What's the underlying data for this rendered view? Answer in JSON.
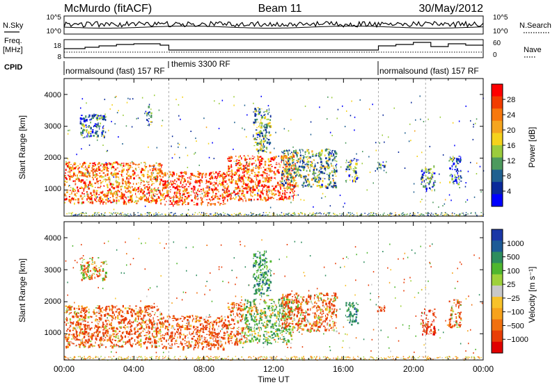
{
  "header": {
    "station": "McMurdo (fitACF)",
    "beam": "Beam 11",
    "date": "30/May/2012"
  },
  "noise_panel": {
    "left_label": "N.Sky",
    "right_label": "N.Search",
    "left_ticks": [
      "10^5",
      "10^0"
    ],
    "right_ticks": [
      "10^5",
      "10^0"
    ]
  },
  "freq_panel": {
    "left_label_line1": "Freq.",
    "left_label_line2": "[MHz]",
    "left_ticks": [
      "18",
      "8"
    ],
    "right_label": "Nave",
    "right_ticks": [
      "60",
      "0"
    ]
  },
  "cpid": {
    "label": "CPID",
    "segments": [
      {
        "text": "normalsound (fast) 157 RF",
        "start_hour": 0,
        "end_hour": 6
      },
      {
        "text": "themis 3300 RF",
        "start_hour": 6,
        "end_hour": 18
      },
      {
        "text": "normalsound (fast) 157 RF",
        "start_hour": 18,
        "end_hour": 24
      }
    ]
  },
  "chart_data": [
    {
      "type": "heatmap",
      "title": "",
      "xlabel": "",
      "ylabel": "Slant Range [km]",
      "xlim": [
        0,
        24
      ],
      "ylim": [
        180,
        4500
      ],
      "yticks": [
        1000,
        2000,
        3000,
        4000
      ],
      "colorbar": {
        "label": "Power [dB]",
        "ticks": [
          "28",
          "24",
          "20",
          "16",
          "12",
          "8",
          "4"
        ],
        "colors": [
          "#ff0000",
          "#f23c00",
          "#f7780d",
          "#f5a51f",
          "#f5d21c",
          "#9bcc3d",
          "#4d9a5e",
          "#206090",
          "#0a2a9a",
          "#0000ff"
        ]
      },
      "echo_regions": [
        {
          "t0": 0.0,
          "t1": 5.6,
          "r0": 600,
          "r1": 1900,
          "value_db": 24
        },
        {
          "t0": 5.6,
          "t1": 9.3,
          "r0": 550,
          "r1": 1600,
          "value_db": 28
        },
        {
          "t0": 9.3,
          "t1": 13.2,
          "r0": 700,
          "r1": 2100,
          "value_db": 26
        },
        {
          "t0": 10.8,
          "t1": 11.8,
          "r0": 2200,
          "r1": 3600,
          "value_db": 12
        },
        {
          "t0": 0.9,
          "t1": 2.4,
          "r0": 2700,
          "r1": 3400,
          "value_db": 8
        },
        {
          "t0": 4.7,
          "t1": 5.0,
          "r0": 3000,
          "r1": 3700,
          "value_db": 10
        },
        {
          "t0": 12.4,
          "t1": 15.6,
          "r0": 1100,
          "r1": 2300,
          "value_db": 12
        },
        {
          "t0": 16.1,
          "t1": 16.8,
          "r0": 1300,
          "r1": 2000,
          "value_db": 10
        },
        {
          "t0": 17.9,
          "t1": 18.4,
          "r0": 1700,
          "r1": 1900,
          "value_db": 8
        },
        {
          "t0": 20.4,
          "t1": 21.2,
          "r0": 1000,
          "r1": 1800,
          "value_db": 10
        },
        {
          "t0": 22.0,
          "t1": 22.7,
          "r0": 1200,
          "r1": 2100,
          "value_db": 8
        }
      ]
    },
    {
      "type": "heatmap",
      "title": "",
      "xlabel": "Time UT",
      "ylabel": "Slant Range [km]",
      "xlim": [
        0,
        24
      ],
      "ylim": [
        180,
        4500
      ],
      "yticks": [
        1000,
        2000,
        3000,
        4000
      ],
      "xticks": [
        "00:00",
        "04:00",
        "08:00",
        "12:00",
        "16:00",
        "20:00",
        "00:00"
      ],
      "colorbar": {
        "label": "Velocity [m s⁻¹]",
        "ticks": [
          "1000",
          "500",
          "100",
          "25",
          "−25",
          "−100",
          "−500",
          "−1000"
        ],
        "colors": [
          "#1a37a6",
          "#1d5b96",
          "#2e8d5e",
          "#4fb62f",
          "#9ed13a",
          "#c8c8c8",
          "#f7c22a",
          "#f7a21b",
          "#f0700f",
          "#e83d07",
          "#e00000"
        ]
      },
      "echo_regions": [
        {
          "t0": 0.0,
          "t1": 5.6,
          "r0": 600,
          "r1": 1900,
          "value_ms": -150
        },
        {
          "t0": 5.6,
          "t1": 9.3,
          "r0": 550,
          "r1": 1600,
          "value_ms": -200
        },
        {
          "t0": 9.3,
          "t1": 10.3,
          "r0": 700,
          "r1": 2000,
          "value_ms": -150
        },
        {
          "t0": 10.3,
          "t1": 13.0,
          "r0": 700,
          "r1": 2100,
          "value_ms": 150
        },
        {
          "t0": 10.8,
          "t1": 11.8,
          "r0": 2200,
          "r1": 3600,
          "value_ms": 300
        },
        {
          "t0": 0.9,
          "t1": 2.4,
          "r0": 2700,
          "r1": 3400,
          "value_ms": 0
        },
        {
          "t0": 12.4,
          "t1": 15.6,
          "r0": 1100,
          "r1": 2300,
          "value_ms": -120
        },
        {
          "t0": 16.1,
          "t1": 16.8,
          "r0": 1300,
          "r1": 2000,
          "value_ms": 400
        },
        {
          "t0": 17.9,
          "t1": 18.4,
          "r0": 1700,
          "r1": 1900,
          "value_ms": -200
        },
        {
          "t0": 20.4,
          "t1": 21.2,
          "r0": 1000,
          "r1": 1800,
          "value_ms": -400
        },
        {
          "t0": 22.0,
          "t1": 22.7,
          "r0": 1200,
          "r1": 2100,
          "value_ms": -100
        }
      ]
    }
  ]
}
